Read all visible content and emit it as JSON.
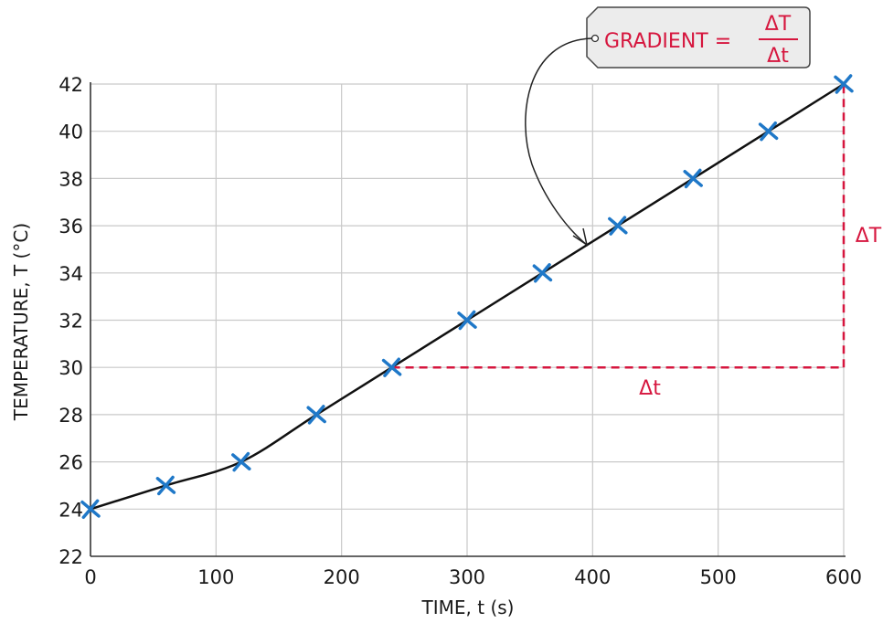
{
  "chart_data": {
    "type": "scatter",
    "xlabel": "TIME, t (s)",
    "ylabel": "TEMPERATURE, T (°C)",
    "xlim": [
      0,
      600
    ],
    "ylim": [
      22,
      42
    ],
    "x_ticks": [
      0,
      100,
      200,
      300,
      400,
      500,
      600
    ],
    "y_ticks": [
      22,
      24,
      26,
      28,
      30,
      32,
      34,
      36,
      38,
      40,
      42
    ],
    "grid": true,
    "series": [
      {
        "x": [
          0,
          60,
          120,
          180,
          240,
          300,
          360,
          420,
          480,
          540,
          600
        ],
        "y": [
          24,
          25,
          26,
          28,
          30,
          32,
          34,
          36,
          38,
          40,
          42
        ]
      }
    ],
    "best_fit_curve": true,
    "gradient_triangle": {
      "x_start": 240,
      "x_end": 600,
      "y_start": 30,
      "y_end": 42,
      "horizontal_label": "Δt",
      "vertical_label": "ΔT"
    },
    "annotation": {
      "text": "GRADIENT =",
      "numerator": "ΔT",
      "denominator": "Δt"
    },
    "colors": {
      "curve": "#111111",
      "markers": "#1f78c8",
      "triangle": "#d6163e",
      "grid": "#c9c9c9",
      "label_box": "#ececec"
    }
  }
}
